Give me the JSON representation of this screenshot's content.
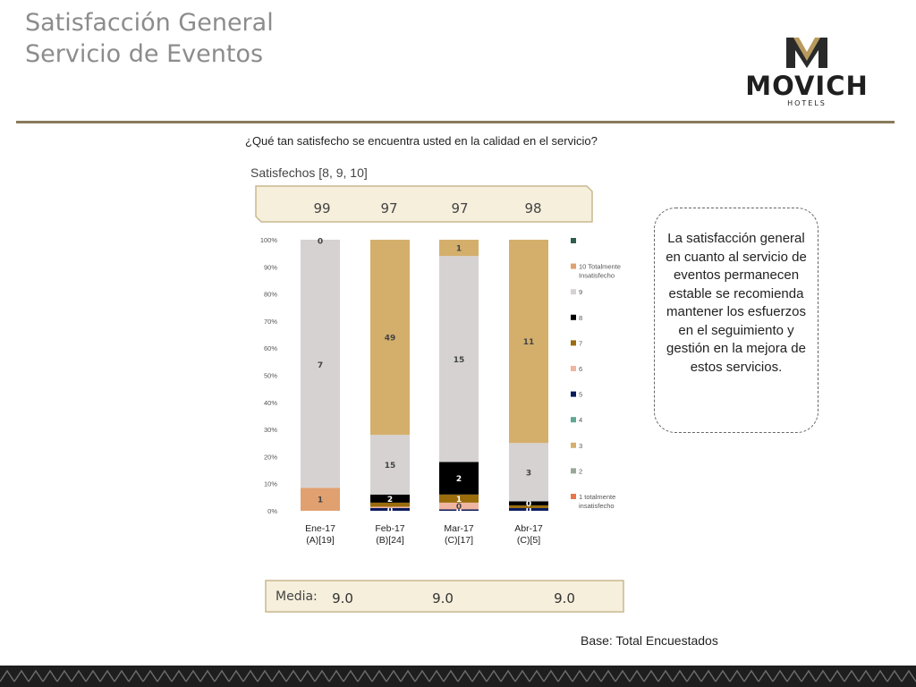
{
  "header": {
    "title_line1": "Satisfacción General",
    "title_line2": "Servicio de Eventos",
    "logo_text": "MOVICH",
    "logo_sub": "HOTELS"
  },
  "question": "¿Qué tan satisfecho se encuentra usted en la calidad en el servicio?",
  "satisfied_label": "Satisfechos [8, 9, 10]",
  "callout": "La satisfacción general en cuanto al servicio de eventos permanecen estable se recomienda mantener los esfuerzos en el seguimiento y gestión en la mejora de estos servicios.",
  "media": {
    "label": "Media:",
    "values": [
      "9.0",
      "9.0",
      "9.0"
    ]
  },
  "base": "Base: Total Encuestados",
  "colors": {
    "score_10": "#2e5e4e",
    "score_10_totalmente_insatisfecho": "#e0a070",
    "score_9": "#d6d2d2",
    "score_8": "#000000",
    "score_7": "#9a6c0c",
    "score_6": "#f0b5a0",
    "score_5": "#0a1a5c",
    "score_4": "#5ea894",
    "score_3": "#d4af6c",
    "score_2": "#98a898",
    "score_1": "#e8764a",
    "callout_band": "#f5efdc",
    "band_border": "#c9b98f",
    "rule": "#8a7a5a"
  },
  "chart_data": {
    "type": "bar",
    "stacked": true,
    "ylim": [
      0,
      100
    ],
    "yticks": [
      "0%",
      "10%",
      "20%",
      "30%",
      "40%",
      "50%",
      "60%",
      "70%",
      "80%",
      "90%",
      "100%"
    ],
    "categories": [
      "Ene-17",
      "Feb-17",
      "Mar-17",
      "Abr-17"
    ],
    "category_bases": [
      "(A)[19]",
      "(B)[24]",
      "(C)[17]",
      "(C)[5]"
    ],
    "satisfied_pct": [
      "99",
      "97",
      "97",
      "98"
    ],
    "legend": [
      "",
      "10 Totalmente Insatisfecho",
      "9",
      "8",
      "7",
      "6",
      "5",
      "4",
      "3",
      "2",
      "1 totalmente insatisfecho"
    ],
    "bars": [
      {
        "segments": [
          {
            "key": "score_10_totalmente_insatisfecho",
            "value": 8.5,
            "label": "1"
          },
          {
            "key": "score_9",
            "value": 91,
            "label": "7"
          },
          {
            "key": "score_9",
            "value": 0.5,
            "label": "0"
          }
        ]
      },
      {
        "segments": [
          {
            "key": "score_5",
            "value": 1,
            "label": "0"
          },
          {
            "key": "score_6",
            "value": 0.5,
            "label": ""
          },
          {
            "key": "score_7",
            "value": 1.5,
            "label": ""
          },
          {
            "key": "score_8",
            "value": 3,
            "label": "2"
          },
          {
            "key": "score_9",
            "value": 22,
            "label": "15"
          },
          {
            "key": "score_3",
            "value": 72,
            "label": "49"
          }
        ]
      },
      {
        "segments": [
          {
            "key": "score_5",
            "value": 0.5,
            "label": "0"
          },
          {
            "key": "score_6",
            "value": 2.5,
            "label": "0"
          },
          {
            "key": "score_7",
            "value": 3,
            "label": "1"
          },
          {
            "key": "score_8",
            "value": 12,
            "label": "2"
          },
          {
            "key": "score_9",
            "value": 76,
            "label": "15"
          },
          {
            "key": "score_3",
            "value": 6,
            "label": "1"
          }
        ]
      },
      {
        "segments": [
          {
            "key": "score_5",
            "value": 1,
            "label": "0"
          },
          {
            "key": "score_7",
            "value": 1,
            "label": ""
          },
          {
            "key": "score_8",
            "value": 1.5,
            "label": "0"
          },
          {
            "key": "score_9",
            "value": 21.5,
            "label": "3"
          },
          {
            "key": "score_3",
            "value": 75,
            "label": "11"
          }
        ]
      }
    ]
  }
}
